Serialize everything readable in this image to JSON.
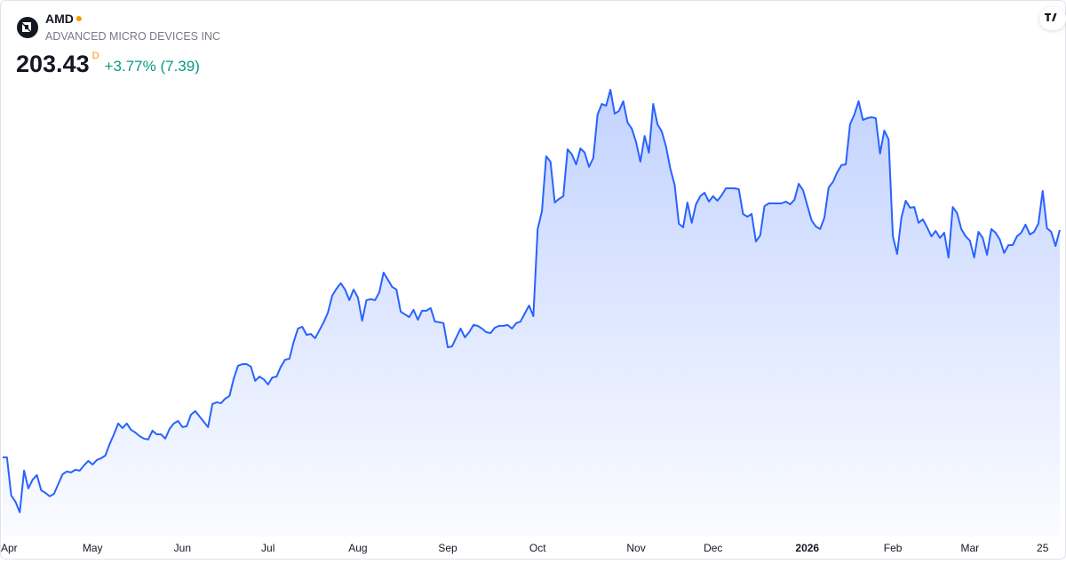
{
  "header": {
    "symbol": "AMD",
    "company": "ADVANCED MICRO DEVICES INC",
    "price": "203.43",
    "interval": "D",
    "change": "+3.77% (7.39)"
  },
  "chart_data": {
    "type": "area",
    "color": "#2962ff",
    "values": [
      102.6,
      102.6,
      85.7,
      82.9,
      78.2,
      96.7,
      88.8,
      92.7,
      94.7,
      88.0,
      86.8,
      85.3,
      86.4,
      90.8,
      95.1,
      96.3,
      95.9,
      97.1,
      96.7,
      99.0,
      101.0,
      99.4,
      101.4,
      102.2,
      103.4,
      108.5,
      112.8,
      117.6,
      115.6,
      117.6,
      114.8,
      113.6,
      112.0,
      110.9,
      110.5,
      114.4,
      112.8,
      112.8,
      110.9,
      115.2,
      117.6,
      118.7,
      116.0,
      116.4,
      121.5,
      123.1,
      120.7,
      118.3,
      116.0,
      126.2,
      127.0,
      126.6,
      128.6,
      129.8,
      137.6,
      143.2,
      143.9,
      143.9,
      142.8,
      136.5,
      138.4,
      137.2,
      134.9,
      138.0,
      138.4,
      142.8,
      145.9,
      146.3,
      153.8,
      159.7,
      160.5,
      156.9,
      157.3,
      155.4,
      158.9,
      162.5,
      166.8,
      174.3,
      177.4,
      179.8,
      177.0,
      172.3,
      177.0,
      173.5,
      163.2,
      172.3,
      172.7,
      172.3,
      175.8,
      184.5,
      181.4,
      178.2,
      177.0,
      167.2,
      166.0,
      164.8,
      168.0,
      163.6,
      167.6,
      167.6,
      168.8,
      162.8,
      162.5,
      162.1,
      151.4,
      151.8,
      155.8,
      159.7,
      155.8,
      158.1,
      161.3,
      160.9,
      159.7,
      158.1,
      157.7,
      160.1,
      160.9,
      160.9,
      161.3,
      159.7,
      162.1,
      162.8,
      166.4,
      169.9,
      165.2,
      203.8,
      211.7,
      236.1,
      233.7,
      215.6,
      217.2,
      218.4,
      239.2,
      236.9,
      232.5,
      239.6,
      237.7,
      231.4,
      235.3,
      254.6,
      259.3,
      258.5,
      265.6,
      255.0,
      256.2,
      260.5,
      251.1,
      248.3,
      242.4,
      233.7,
      245.1,
      237.7,
      259.3,
      250.3,
      247.1,
      240.4,
      230.6,
      223.5,
      206.2,
      204.6,
      215.6,
      206.6,
      214.8,
      218.4,
      219.9,
      216.0,
      218.4,
      216.4,
      218.8,
      221.9,
      221.9,
      221.9,
      221.5,
      210.5,
      209.3,
      210.5,
      198.3,
      201.0,
      214.0,
      215.2,
      215.2,
      215.2,
      215.2,
      216.0,
      214.8,
      216.8,
      223.9,
      221.1,
      214.4,
      207.7,
      205.0,
      203.8,
      208.9,
      222.3,
      224.7,
      229.0,
      232.2,
      232.5,
      250.3,
      254.6,
      260.5,
      252.2,
      253.0,
      253.4,
      253.0,
      237.3,
      247.5,
      243.6,
      200.6,
      192.8,
      208.9,
      216.4,
      213.3,
      213.6,
      206.6,
      208.1,
      204.6,
      200.6,
      203.0,
      199.9,
      202.2,
      191.2,
      213.6,
      210.9,
      203.8,
      200.6,
      198.7,
      191.2,
      202.6,
      199.9,
      192.4,
      203.8,
      202.2,
      199.1,
      193.2,
      196.7,
      196.7,
      200.6,
      202.2,
      205.8,
      201.4,
      202.6,
      206.2,
      220.7,
      204.2,
      202.6,
      196.3,
      203.43
    ],
    "ylim": [
      67.5,
      305.4
    ],
    "xticks": [
      {
        "value": 0,
        "label": "Apr"
      },
      {
        "value": 21,
        "label": "May"
      },
      {
        "value": 42,
        "label": "Jun"
      },
      {
        "value": 62,
        "label": "Jul"
      },
      {
        "value": 83,
        "label": "Aug"
      },
      {
        "value": 104,
        "label": "Sep"
      },
      {
        "value": 125,
        "label": "Oct"
      },
      {
        "value": 148,
        "label": "Nov"
      },
      {
        "value": 166,
        "label": "Dec"
      },
      {
        "value": 188,
        "label": "2026",
        "bold": true
      },
      {
        "value": 208,
        "label": "Feb"
      },
      {
        "value": 226,
        "label": "Mar"
      },
      {
        "value": 243,
        "label": "25"
      }
    ]
  }
}
